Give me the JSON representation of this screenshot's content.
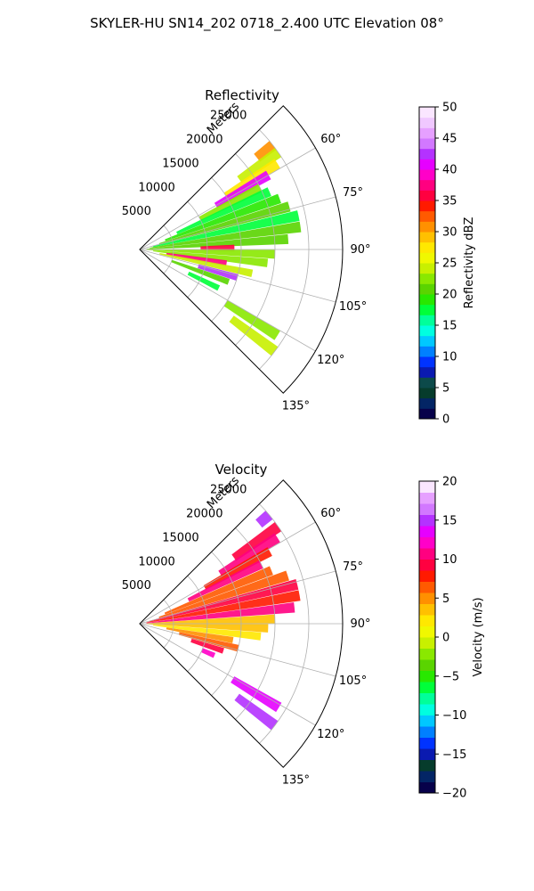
{
  "figure": {
    "suptitle": "SKYLER-HU  SN14_202  0718_2.400 UTC Elevation 08°"
  },
  "chart_data": [
    {
      "type": "polar-sector",
      "title": "Reflectivity",
      "radial_label": "Meters",
      "radial_ticks": [
        5000,
        10000,
        15000,
        20000,
        25000
      ],
      "rmax": 30000,
      "theta_ticks_deg": [
        60,
        75,
        90,
        105,
        120,
        135
      ],
      "theta_tick_labels": [
        "60°",
        "75°",
        "90°",
        "105°",
        "120°",
        "135°"
      ],
      "theta_range_deg": [
        45,
        135
      ],
      "grid": true,
      "colorbar": {
        "label": "Reflectivity dBZ",
        "min": 0,
        "max": 50,
        "ticks": [
          0,
          5,
          10,
          15,
          20,
          25,
          30,
          35,
          40,
          45,
          50
        ],
        "colors": [
          "#07014a",
          "#032565",
          "#063c2c",
          "#0c4a4a",
          "#0a1ab0",
          "#0033ff",
          "#0080ff",
          "#00c8ff",
          "#00ffe0",
          "#00ff9a",
          "#00ff3a",
          "#28e800",
          "#5ad400",
          "#8ae800",
          "#c8f000",
          "#f0f800",
          "#ffe800",
          "#ffc000",
          "#ff9000",
          "#ff5a00",
          "#ff1a00",
          "#ff0040",
          "#ff0080",
          "#ff00c8",
          "#e600ff",
          "#b432ff",
          "#d278ff",
          "#e6a0ff",
          "#f0c8ff",
          "#fae6ff"
        ]
      },
      "cells": [
        {
          "az": 52,
          "r": [
            22000,
            25000
          ],
          "v": 30
        },
        {
          "az": 55,
          "r": [
            18000,
            25000
          ],
          "v": 24
        },
        {
          "az": 58,
          "r": [
            15000,
            24000
          ],
          "v": 28
        },
        {
          "az": 60,
          "r": [
            13000,
            22000
          ],
          "v": 40
        },
        {
          "az": 63,
          "r": [
            10000,
            20000
          ],
          "v": 22
        },
        {
          "az": 66,
          "r": [
            6000,
            21000
          ],
          "v": 18
        },
        {
          "az": 70,
          "r": [
            4000,
            22000
          ],
          "v": 19
        },
        {
          "az": 74,
          "r": [
            3000,
            23000
          ],
          "v": 20
        },
        {
          "az": 78,
          "r": [
            2000,
            24000
          ],
          "v": 18
        },
        {
          "az": 82,
          "r": [
            1500,
            24000
          ],
          "v": 21
        },
        {
          "az": 86,
          "r": [
            1000,
            22000
          ],
          "v": 20
        },
        {
          "az": 89,
          "r": [
            9000,
            14000
          ],
          "v": 35
        },
        {
          "az": 92,
          "r": [
            1000,
            20000
          ],
          "v": 22
        },
        {
          "az": 96,
          "r": [
            2000,
            19000
          ],
          "v": 23
        },
        {
          "az": 99,
          "r": [
            4000,
            13000
          ],
          "v": 38
        },
        {
          "az": 102,
          "r": [
            3000,
            17000
          ],
          "v": 24
        },
        {
          "az": 106,
          "r": [
            9000,
            15000
          ],
          "v": 42
        },
        {
          "az": 110,
          "r": [
            5000,
            14000
          ],
          "v": 21
        },
        {
          "az": 116,
          "r": [
            8000,
            13000
          ],
          "v": 17
        },
        {
          "az": 122,
          "r": [
            15000,
            24000
          ],
          "v": 22
        },
        {
          "az": 127,
          "r": [
            17000,
            25000
          ],
          "v": 24
        }
      ]
    },
    {
      "type": "polar-sector",
      "title": "Velocity",
      "radial_label": "Meters",
      "radial_ticks": [
        5000,
        10000,
        15000,
        20000,
        25000
      ],
      "rmax": 30000,
      "theta_ticks_deg": [
        60,
        75,
        90,
        105,
        120,
        135
      ],
      "theta_tick_labels": [
        "60°",
        "75°",
        "90°",
        "105°",
        "120°",
        "135°"
      ],
      "theta_range_deg": [
        45,
        135
      ],
      "grid": true,
      "colorbar": {
        "label": "Velocity (m/s)",
        "min": -20,
        "max": 20,
        "ticks": [
          -20,
          -15,
          -10,
          -5,
          0,
          5,
          10,
          15,
          20
        ],
        "colors": [
          "#07014a",
          "#032565",
          "#063c2c",
          "#0a1ab0",
          "#0033ff",
          "#0080ff",
          "#00c8ff",
          "#00ffe0",
          "#00ff9a",
          "#00ff3a",
          "#28e800",
          "#5ad400",
          "#8ae800",
          "#c8f000",
          "#f0f800",
          "#ffe800",
          "#ffc000",
          "#ff9000",
          "#ff5a00",
          "#ff1a00",
          "#ff0040",
          "#ff0080",
          "#ff00c8",
          "#e600ff",
          "#b432ff",
          "#d278ff",
          "#e6a0ff",
          "#fae6ff"
        ]
      },
      "cells": [
        {
          "az": 50,
          "r": [
            23000,
            25000
          ],
          "v": 15
        },
        {
          "az": 55,
          "r": [
            17000,
            25000
          ],
          "v": 9
        },
        {
          "az": 58,
          "r": [
            14000,
            24000
          ],
          "v": 10
        },
        {
          "az": 61,
          "r": [
            11000,
            22000
          ],
          "v": 8
        },
        {
          "az": 64,
          "r": [
            8000,
            20000
          ],
          "v": 11
        },
        {
          "az": 68,
          "r": [
            4000,
            21000
          ],
          "v": 7
        },
        {
          "az": 72,
          "r": [
            3000,
            23000
          ],
          "v": 6
        },
        {
          "az": 76,
          "r": [
            1500,
            24000
          ],
          "v": 9
        },
        {
          "az": 80,
          "r": [
            1000,
            24000
          ],
          "v": 8
        },
        {
          "az": 84,
          "r": [
            1000,
            23000
          ],
          "v": 10
        },
        {
          "az": 88,
          "r": [
            1000,
            20000
          ],
          "v": 3
        },
        {
          "az": 92,
          "r": [
            1000,
            19000
          ],
          "v": 4
        },
        {
          "az": 96,
          "r": [
            2000,
            18000
          ],
          "v": 2
        },
        {
          "az": 100,
          "r": [
            4000,
            14000
          ],
          "v": 5
        },
        {
          "az": 104,
          "r": [
            6000,
            15000
          ],
          "v": 6
        },
        {
          "az": 108,
          "r": [
            8000,
            13000
          ],
          "v": 9
        },
        {
          "az": 113,
          "r": [
            10000,
            12000
          ],
          "v": 12
        },
        {
          "az": 121,
          "r": [
            16000,
            24000
          ],
          "v": 14
        },
        {
          "az": 127,
          "r": [
            18000,
            25000
          ],
          "v": 15
        }
      ]
    }
  ]
}
